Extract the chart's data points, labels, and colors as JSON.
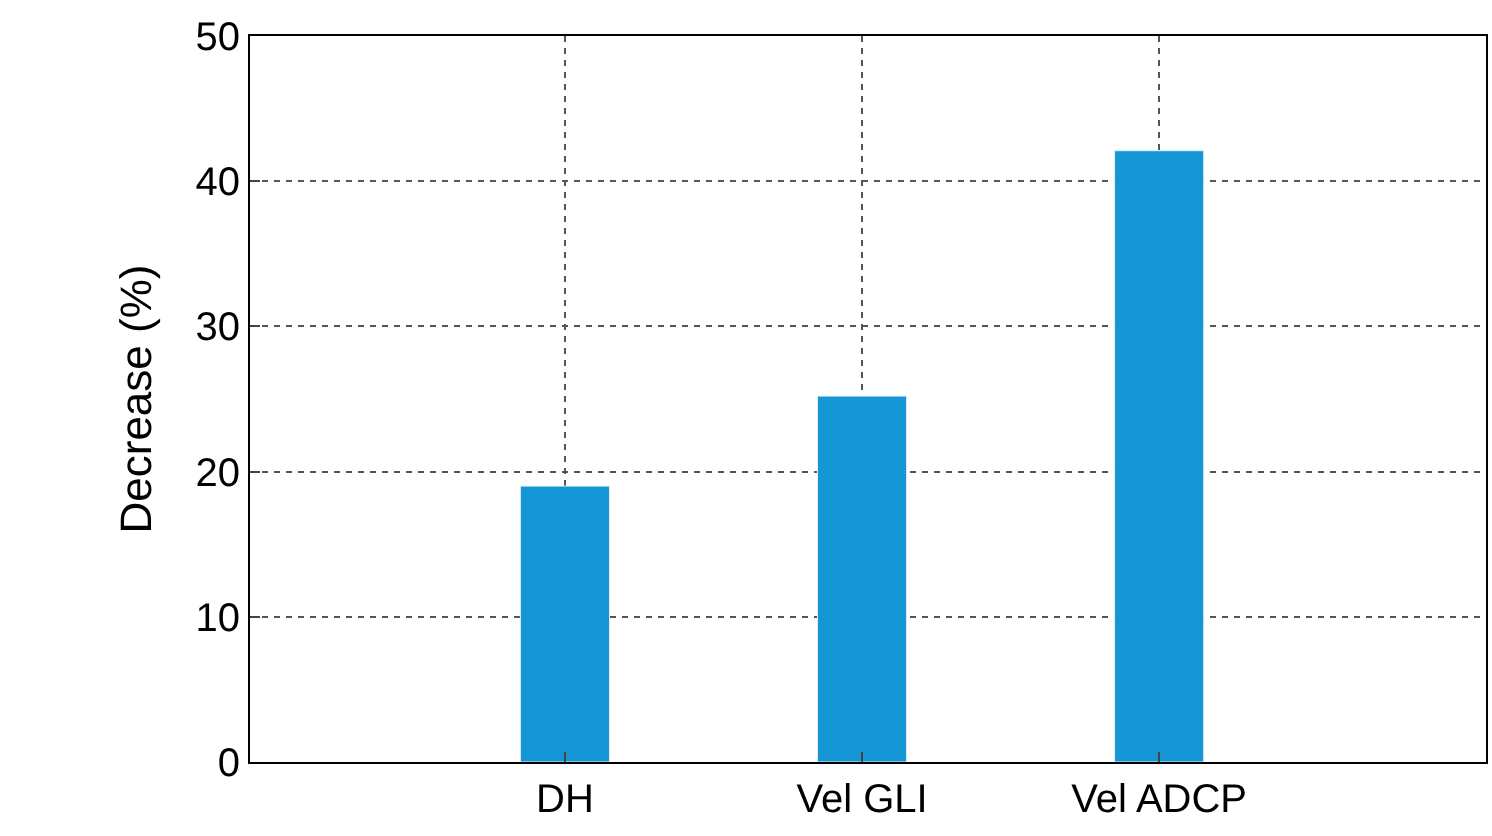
{
  "chart_data": {
    "type": "bar",
    "ylabel": "Decrease (%)",
    "categories": [
      "DH",
      "Vel GLI",
      "Vel ADCP"
    ],
    "values": [
      19,
      25.2,
      42.1
    ],
    "color": "#1497d4",
    "ylim": [
      0,
      50
    ],
    "yticks": [
      0,
      10,
      20,
      30,
      40,
      50
    ],
    "grid": true
  }
}
